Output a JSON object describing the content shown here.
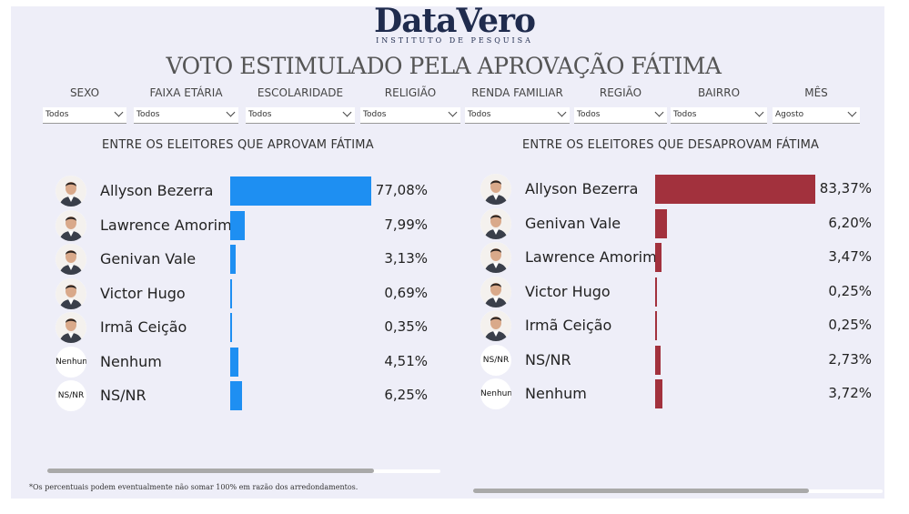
{
  "logo": {
    "main": "DataVero",
    "sub": "INSTITUTO DE PESQUISA"
  },
  "title": "VOTO ESTIMULADO PELA APROVAÇÃO FÁTIMA",
  "filters": [
    {
      "label": "SEXO",
      "value": "Todos"
    },
    {
      "label": "FAIXA ETÁRIA",
      "value": "Todos"
    },
    {
      "label": "ESCOLARIDADE",
      "value": "Todos"
    },
    {
      "label": "RELIGIÃO",
      "value": "Todos"
    },
    {
      "label": "RENDA FAMILIAR",
      "value": "Todos"
    },
    {
      "label": "REGIÃO",
      "value": "Todos"
    },
    {
      "label": "BAIRRO",
      "value": "Todos"
    },
    {
      "label": "MÊS",
      "value": "Agosto"
    }
  ],
  "colors": {
    "approve_bar": "#1e8ff2",
    "disapprove_bar": "#a2313d"
  },
  "approve": {
    "title": "ENTRE OS ELEITORES QUE APROVAM FÁTIMA",
    "rows": [
      {
        "name": "Allyson Bezerra",
        "value": "77,08%",
        "pct": 77.08,
        "avatar": "person-photo"
      },
      {
        "name": "Lawrence Amorim",
        "value": "7,99%",
        "pct": 7.99,
        "avatar": "person-photo"
      },
      {
        "name": "Genivan Vale",
        "value": "3,13%",
        "pct": 3.13,
        "avatar": "person-photo"
      },
      {
        "name": "Victor Hugo",
        "value": "0,69%",
        "pct": 0.69,
        "avatar": "person-photo"
      },
      {
        "name": "Irmã Ceição",
        "value": "0,35%",
        "pct": 0.35,
        "avatar": "person-photo"
      },
      {
        "name": "Nenhum",
        "value": "4,51%",
        "pct": 4.51,
        "avatar_text": "Nenhum"
      },
      {
        "name": "NS/NR",
        "value": "6,25%",
        "pct": 6.25,
        "avatar_text": "NS/NR"
      }
    ]
  },
  "disapprove": {
    "title": "ENTRE OS ELEITORES QUE DESAPROVAM FÁTIMA",
    "rows": [
      {
        "name": "Allyson Bezerra",
        "value": "83,37%",
        "pct": 83.37,
        "avatar": "person-photo"
      },
      {
        "name": "Genivan Vale",
        "value": "6,20%",
        "pct": 6.2,
        "avatar": "person-photo"
      },
      {
        "name": "Lawrence Amorim",
        "value": "3,47%",
        "pct": 3.47,
        "avatar": "person-photo"
      },
      {
        "name": "Victor Hugo",
        "value": "0,25%",
        "pct": 0.25,
        "avatar": "person-photo"
      },
      {
        "name": "Irmã Ceição",
        "value": "0,25%",
        "pct": 0.25,
        "avatar": "person-photo"
      },
      {
        "name": "NS/NR",
        "value": "2,73%",
        "pct": 2.73,
        "avatar_text": "NS/NR"
      },
      {
        "name": "Nenhum",
        "value": "3,72%",
        "pct": 3.72,
        "avatar_text": "Nenhum"
      }
    ]
  },
  "footnote": "*Os percentuais podem eventualmente não somar 100% em razão dos arredondamentos."
}
